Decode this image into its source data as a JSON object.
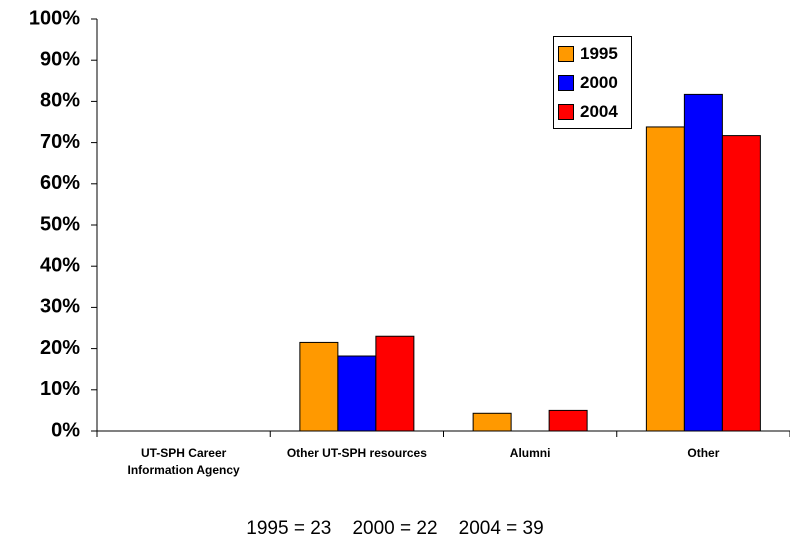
{
  "chart_data": {
    "type": "bar",
    "categories": [
      "UT-SPH Career Information Agency",
      "Other UT-SPH resources",
      "Alumni",
      "Other"
    ],
    "series": [
      {
        "name": "1995",
        "color": "#ff9900",
        "values": [
          0,
          21.5,
          4.3,
          73.8
        ]
      },
      {
        "name": "2000",
        "color": "#0000ff",
        "values": [
          0,
          18.2,
          0,
          81.7
        ]
      },
      {
        "name": "2004",
        "color": "#ff0000",
        "values": [
          0,
          23.0,
          5.0,
          71.7
        ]
      }
    ],
    "ylim": [
      0,
      100
    ],
    "yticks": [
      {
        "value": 0,
        "label": "0%"
      },
      {
        "value": 10,
        "label": "10%"
      },
      {
        "value": 20,
        "label": "20%"
      },
      {
        "value": 30,
        "label": "30%"
      },
      {
        "value": 40,
        "label": "40%"
      },
      {
        "value": 50,
        "label": "50%"
      },
      {
        "value": 60,
        "label": "60%"
      },
      {
        "value": 70,
        "label": "70%"
      },
      {
        "value": 80,
        "label": "80%"
      },
      {
        "value": 90,
        "label": "90%"
      },
      {
        "value": 100,
        "label": "100%"
      }
    ],
    "grid": false,
    "legend_position": "top-right",
    "annotation": "1995 = 23    2000 = 22    2004 = 39"
  }
}
